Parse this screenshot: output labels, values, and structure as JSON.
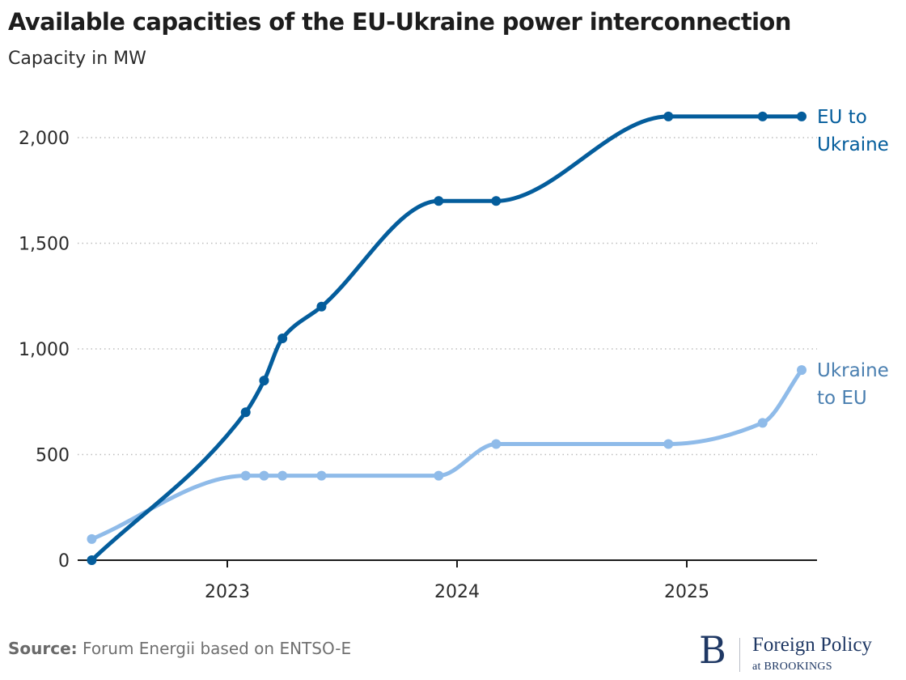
{
  "chart_data": {
    "type": "line",
    "title": "Available capacities of the EU-Ukraine power interconnection",
    "subtitle": "Capacity in MW",
    "xlabel": "",
    "ylabel": "Capacity in MW",
    "xlim": [
      2022.35,
      2025.62
    ],
    "ylim": [
      0,
      2100
    ],
    "y_ticks": [
      0,
      500,
      1000,
      1500,
      2000
    ],
    "y_tick_labels": [
      "0",
      "500",
      "1,000",
      "1,500",
      "2,000"
    ],
    "x_ticks": [
      2023,
      2024,
      2025
    ],
    "x_tick_labels": [
      "2023",
      "2024",
      "2025"
    ],
    "grid": "horizontal-dotted",
    "legend": "direct-labels-right",
    "series": [
      {
        "name": "EU to Ukraine",
        "label_lines": [
          "EU to",
          "Ukraine"
        ],
        "color": "#045d9c",
        "x": [
          2022.41,
          2023.08,
          2023.16,
          2023.24,
          2023.41,
          2023.92,
          2024.17,
          2024.92,
          2025.33,
          2025.5
        ],
        "values": [
          0,
          700,
          850,
          1050,
          1200,
          1700,
          1700,
          2100,
          2100,
          2100
        ]
      },
      {
        "name": "Ukraine to EU",
        "label_lines": [
          "Ukraine",
          "to EU"
        ],
        "color": "#8fbbe9",
        "label_color": "#4a7fb0",
        "x": [
          2022.41,
          2023.08,
          2023.16,
          2023.24,
          2023.41,
          2023.92,
          2024.17,
          2024.92,
          2025.33,
          2025.5
        ],
        "values": [
          100,
          400,
          400,
          400,
          400,
          400,
          550,
          550,
          650,
          900
        ]
      }
    ]
  },
  "footer": {
    "source_label": "Source:",
    "source_text": "Forum Energii based on ENTSO-E"
  },
  "logo": {
    "mark": "B",
    "name": "Foreign Policy",
    "sub": "at BROOKINGS"
  }
}
